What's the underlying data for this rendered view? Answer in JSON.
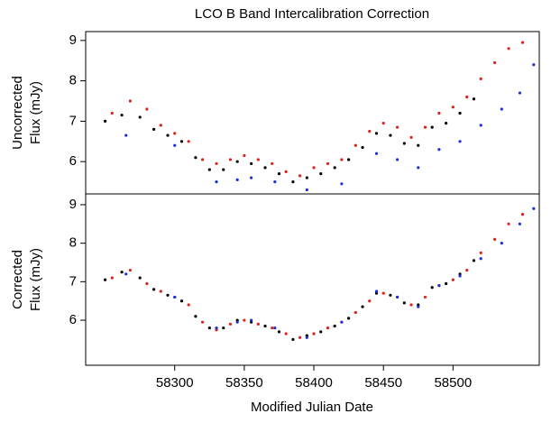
{
  "title": "LCO B Band Intercalibration Correction",
  "xlabel": "Modified Julian Date",
  "chart_data": [
    {
      "type": "scatter",
      "ylabel": [
        "Uncorrected",
        "Flux (mJy)"
      ],
      "xlim": [
        58236,
        58562
      ],
      "ylim": [
        5.2,
        9.22
      ],
      "yticks": [
        6,
        7,
        8,
        9
      ],
      "series": [
        {
          "color": "#000000",
          "x": [
            58250,
            58262,
            58275,
            58285,
            58295,
            58305,
            58315,
            58325,
            58335,
            58345,
            58355,
            58365,
            58375,
            58385,
            58395,
            58405,
            58415,
            58425,
            58435,
            58445,
            58455,
            58465,
            58475,
            58485,
            58495,
            58505,
            58515
          ],
          "values": [
            7.0,
            7.15,
            7.1,
            6.8,
            6.65,
            6.5,
            6.1,
            5.8,
            5.8,
            6.0,
            5.95,
            5.85,
            5.7,
            5.5,
            5.6,
            5.7,
            5.85,
            6.05,
            6.35,
            6.7,
            6.65,
            6.45,
            6.4,
            6.85,
            6.95,
            7.2,
            7.55
          ]
        },
        {
          "color": "#e0201b",
          "x": [
            58255,
            58268,
            58280,
            58290,
            58300,
            58310,
            58320,
            58330,
            58340,
            58350,
            58360,
            58370,
            58380,
            58390,
            58400,
            58410,
            58420,
            58430,
            58440,
            58450,
            58460,
            58470,
            58480,
            58490,
            58500,
            58510,
            58520,
            58530,
            58540,
            58550
          ],
          "values": [
            7.2,
            7.5,
            7.3,
            6.9,
            6.7,
            6.5,
            6.05,
            5.95,
            6.05,
            6.15,
            6.05,
            5.95,
            5.75,
            5.65,
            5.85,
            5.95,
            6.05,
            6.4,
            6.75,
            6.95,
            6.85,
            6.6,
            6.85,
            7.2,
            7.35,
            7.6,
            8.05,
            8.45,
            8.8,
            8.95
          ]
        },
        {
          "color": "#1a2fe0",
          "x": [
            58265,
            58300,
            58330,
            58345,
            58355,
            58372,
            58395,
            58420,
            58445,
            58460,
            58475,
            58490,
            58505,
            58520,
            58535,
            58548,
            58558
          ],
          "values": [
            6.65,
            6.4,
            5.5,
            5.55,
            5.6,
            5.5,
            5.3,
            5.45,
            6.2,
            6.05,
            5.85,
            6.3,
            6.5,
            6.9,
            7.3,
            7.7,
            8.4
          ]
        }
      ]
    },
    {
      "type": "scatter",
      "ylabel": [
        "Corrected",
        "Flux (mJy)"
      ],
      "xlim": [
        58236,
        58562
      ],
      "ylim": [
        4.83,
        9.28
      ],
      "yticks": [
        6,
        7,
        8,
        9
      ],
      "xticks": [
        58300,
        58350,
        58400,
        58450,
        58500
      ],
      "series": [
        {
          "color": "#000000",
          "x": [
            58250,
            58262,
            58275,
            58285,
            58295,
            58305,
            58315,
            58325,
            58335,
            58345,
            58355,
            58365,
            58375,
            58385,
            58395,
            58405,
            58415,
            58425,
            58435,
            58445,
            58455,
            58465,
            58475,
            58485,
            58495,
            58505,
            58515
          ],
          "values": [
            7.05,
            7.25,
            7.1,
            6.8,
            6.65,
            6.5,
            6.1,
            5.8,
            5.8,
            6.0,
            5.95,
            5.85,
            5.7,
            5.5,
            5.6,
            5.7,
            5.85,
            6.05,
            6.35,
            6.7,
            6.65,
            6.45,
            6.4,
            6.85,
            6.95,
            7.2,
            7.55
          ]
        },
        {
          "color": "#e0201b",
          "x": [
            58255,
            58268,
            58280,
            58290,
            58300,
            58310,
            58320,
            58330,
            58340,
            58350,
            58360,
            58370,
            58380,
            58390,
            58400,
            58410,
            58420,
            58430,
            58440,
            58450,
            58460,
            58470,
            58480,
            58490,
            58500,
            58510,
            58520,
            58530,
            58540,
            58550
          ],
          "values": [
            7.1,
            7.3,
            6.95,
            6.75,
            6.6,
            6.4,
            5.95,
            5.75,
            5.9,
            6.0,
            5.9,
            5.8,
            5.65,
            5.55,
            5.65,
            5.8,
            5.95,
            6.2,
            6.5,
            6.7,
            6.6,
            6.4,
            6.6,
            6.9,
            7.05,
            7.3,
            7.75,
            8.1,
            8.5,
            8.75
          ]
        },
        {
          "color": "#1a2fe0",
          "x": [
            58265,
            58300,
            58330,
            58345,
            58355,
            58372,
            58395,
            58420,
            58445,
            58460,
            58475,
            58490,
            58505,
            58520,
            58535,
            58548,
            58558
          ],
          "values": [
            7.2,
            6.6,
            5.8,
            5.95,
            6.0,
            5.8,
            5.55,
            5.95,
            6.75,
            6.6,
            6.35,
            6.9,
            7.15,
            7.6,
            8.0,
            8.5,
            8.9
          ]
        }
      ]
    }
  ]
}
